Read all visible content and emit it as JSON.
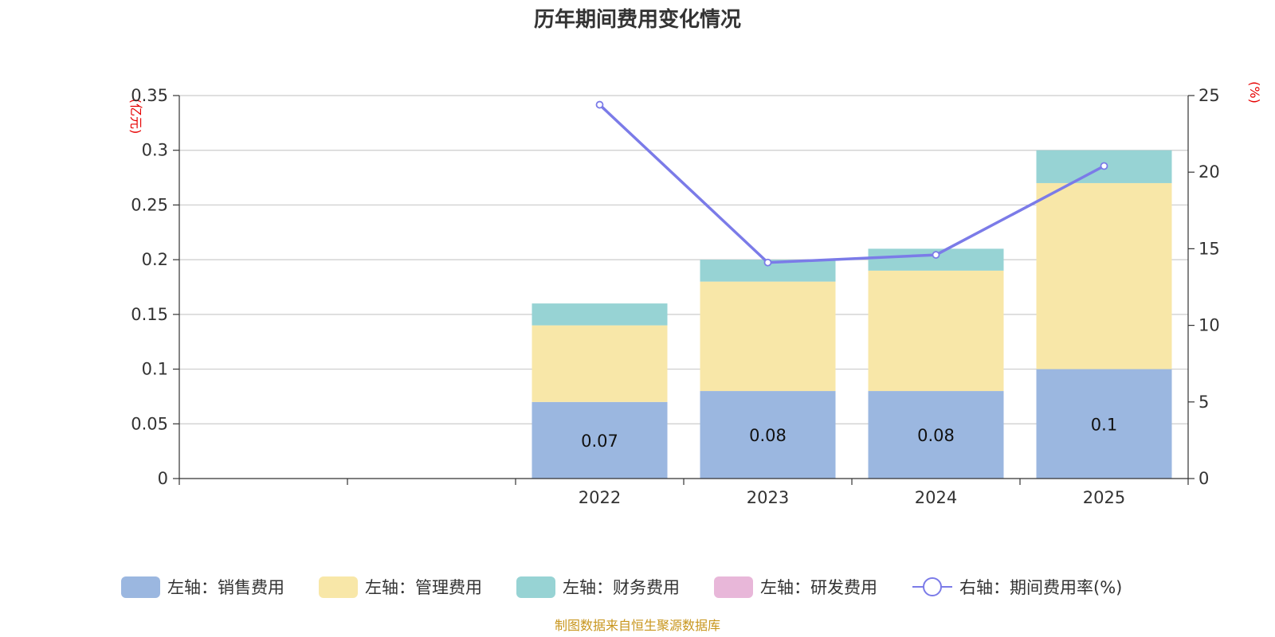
{
  "chart_data": {
    "type": "bar",
    "title": "历年期间费用变化情况",
    "categories": [
      "",
      "",
      "2022",
      "2023",
      "2024",
      "2025"
    ],
    "left_axis": {
      "unit": "(亿元)",
      "ylim": [
        0,
        0.35
      ],
      "ticks": [
        0,
        0.05,
        0.1,
        0.15,
        0.2,
        0.25,
        0.3,
        0.35
      ],
      "tick_labels": [
        "0",
        "0.05",
        "0.1",
        "0.15",
        "0.2",
        "0.25",
        "0.3",
        "0.35"
      ]
    },
    "right_axis": {
      "unit": "(%)",
      "ylim": [
        0,
        25
      ],
      "ticks": [
        0,
        5,
        10,
        15,
        20,
        25
      ],
      "tick_labels": [
        "0",
        "5",
        "10",
        "15",
        "20",
        "25"
      ]
    },
    "series": [
      {
        "name": "左轴：销售费用",
        "axis": "left",
        "color": "#9bb7e0",
        "values": [
          null,
          null,
          0.07,
          0.08,
          0.08,
          0.1
        ],
        "labels": [
          "",
          "",
          "0.07",
          "0.08",
          "0.08",
          "0.1"
        ]
      },
      {
        "name": "左轴：管理费用",
        "axis": "left",
        "color": "#f8e7a8",
        "values": [
          null,
          null,
          0.07,
          0.1,
          0.11,
          0.17
        ]
      },
      {
        "name": "左轴：财务费用",
        "axis": "left",
        "color": "#97d3d4",
        "values": [
          null,
          null,
          0.02,
          0.02,
          0.02,
          0.03
        ]
      },
      {
        "name": "左轴：研发费用",
        "axis": "left",
        "color": "#e8b7d9",
        "values": [
          null,
          null,
          null,
          null,
          null,
          null
        ]
      },
      {
        "name": "右轴：期间费用率(%)",
        "axis": "right",
        "type": "line",
        "color": "#7b7be8",
        "values": [
          null,
          null,
          24.4,
          14.1,
          14.6,
          20.4
        ]
      }
    ],
    "source": "制图数据来自恒生聚源数据库"
  }
}
